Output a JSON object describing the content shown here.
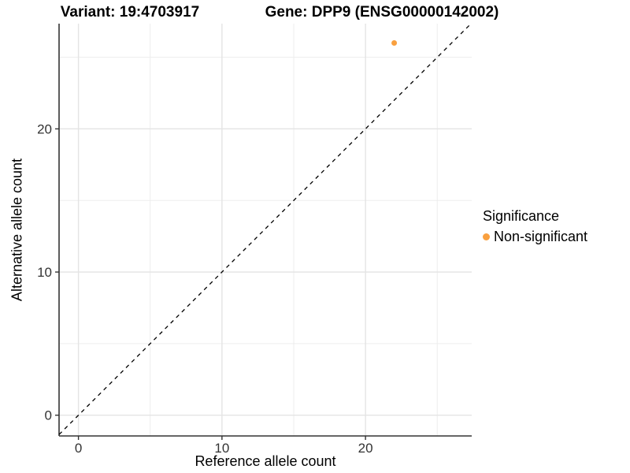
{
  "chart_data": {
    "type": "scatter",
    "title_left": "Variant: 19:4703917",
    "title_right": "Gene: DPP9 (ENSG00000142002)",
    "xlabel": "Reference allele count",
    "ylabel": "Alternative allele count",
    "xlim": [
      -1.35,
      27.4
    ],
    "ylim": [
      -1.45,
      27.35
    ],
    "x_ticks": [
      0,
      10,
      20
    ],
    "y_ticks": [
      0,
      10,
      20
    ],
    "x_minor_ticks": [
      5,
      15,
      25
    ],
    "y_minor_ticks": [
      5,
      15,
      25
    ],
    "grid": true,
    "legend_title": "Significance",
    "legend_position": "right",
    "series": [
      {
        "name": "Non-significant",
        "color": "#F9A03F",
        "points": [
          {
            "x": 22,
            "y": 26
          }
        ]
      }
    ],
    "reference_line": {
      "type": "identity",
      "style": "dashed",
      "color": "#000000"
    }
  },
  "colors": {
    "background": "#FFFFFF",
    "grid_major": "#E4E4E4",
    "grid_minor": "#EDEDED",
    "axis_line": "#333333",
    "tick_text": "#333333",
    "title_text": "#000000",
    "point": "#F9A03F",
    "dashed_line": "#000000"
  }
}
